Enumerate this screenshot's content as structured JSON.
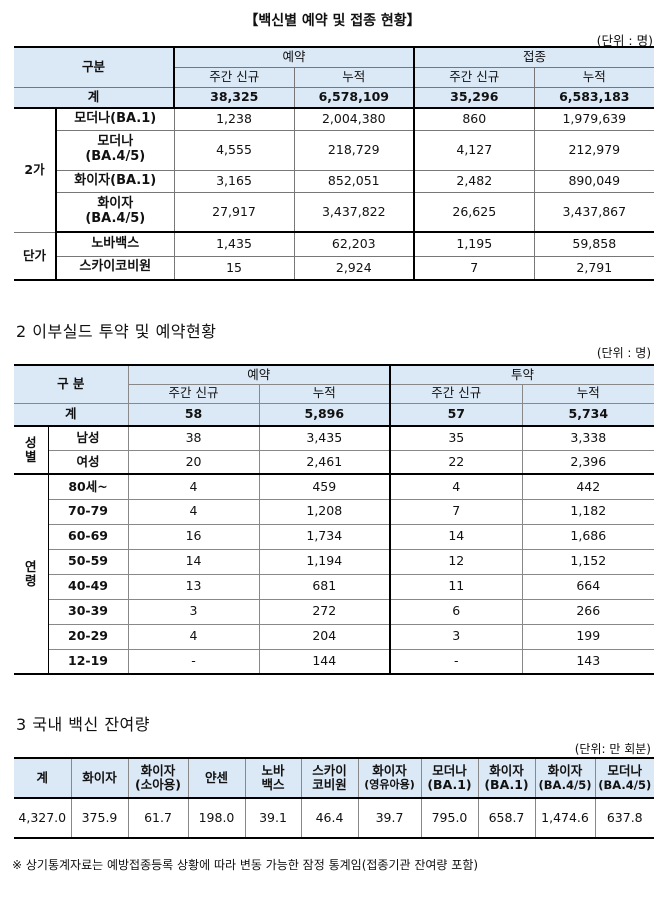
{
  "section1": {
    "title": "【백신별 예약 및 접종 현황】",
    "unit": "(단위 : 명)",
    "header": {
      "category": "구분",
      "reservation": "예약",
      "vaccination": "접종",
      "weekly_new": "주간 신규",
      "cumulative": "누적"
    },
    "total": {
      "label": "계",
      "res_week": "38,325",
      "res_cum": "6,578,109",
      "vac_week": "35,296",
      "vac_cum": "6,583,183"
    },
    "group_bivalent": "2가",
    "group_monovalent": "단가",
    "rows": [
      {
        "name": "모더나(BA.1)",
        "res_week": "1,238",
        "res_cum": "2,004,380",
        "vac_week": "860",
        "vac_cum": "1,979,639"
      },
      {
        "name": "모더나(BA.4/5)",
        "name_line1": "모더나",
        "name_line2": "(BA.4/5)",
        "res_week": "4,555",
        "res_cum": "218,729",
        "vac_week": "4,127",
        "vac_cum": "212,979"
      },
      {
        "name": "화이자(BA.1)",
        "res_week": "3,165",
        "res_cum": "852,051",
        "vac_week": "2,482",
        "vac_cum": "890,049"
      },
      {
        "name": "화이자(BA.4/5)",
        "name_line1": "화이자",
        "name_line2": "(BA.4/5)",
        "res_week": "27,917",
        "res_cum": "3,437,822",
        "vac_week": "26,625",
        "vac_cum": "3,437,867"
      },
      {
        "name": "노바백스",
        "res_week": "1,435",
        "res_cum": "62,203",
        "vac_week": "1,195",
        "vac_cum": "59,858"
      },
      {
        "name": "스카이코비원",
        "res_week": "15",
        "res_cum": "2,924",
        "vac_week": "7",
        "vac_cum": "2,791"
      }
    ]
  },
  "section2": {
    "title": "2 이부실드 투약 및 예약현황",
    "unit": "(단위 : 명)",
    "header": {
      "category": "구 분",
      "reservation": "예약",
      "administration": "투약",
      "weekly_new": "주간 신규",
      "cumulative": "누적"
    },
    "total": {
      "label": "계",
      "res_week": "58",
      "res_cum": "5,896",
      "adm_week": "57",
      "adm_cum": "5,734"
    },
    "gender_label_1": "성",
    "gender_label_2": "별",
    "age_label_1": "연",
    "age_label_2": "령",
    "gender_rows": [
      {
        "name": "남성",
        "res_week": "38",
        "res_cum": "3,435",
        "adm_week": "35",
        "adm_cum": "3,338"
      },
      {
        "name": "여성",
        "res_week": "20",
        "res_cum": "2,461",
        "adm_week": "22",
        "adm_cum": "2,396"
      }
    ],
    "age_rows": [
      {
        "name": "80세~",
        "res_week": "4",
        "res_cum": "459",
        "adm_week": "4",
        "adm_cum": "442"
      },
      {
        "name": "70-79",
        "res_week": "4",
        "res_cum": "1,208",
        "adm_week": "7",
        "adm_cum": "1,182"
      },
      {
        "name": "60-69",
        "res_week": "16",
        "res_cum": "1,734",
        "adm_week": "14",
        "adm_cum": "1,686"
      },
      {
        "name": "50-59",
        "res_week": "14",
        "res_cum": "1,194",
        "adm_week": "12",
        "adm_cum": "1,152"
      },
      {
        "name": "40-49",
        "res_week": "13",
        "res_cum": "681",
        "adm_week": "11",
        "adm_cum": "664"
      },
      {
        "name": "30-39",
        "res_week": "3",
        "res_cum": "272",
        "adm_week": "6",
        "adm_cum": "266"
      },
      {
        "name": "20-29",
        "res_week": "4",
        "res_cum": "204",
        "adm_week": "3",
        "adm_cum": "199"
      },
      {
        "name": "12-19",
        "res_week": "-",
        "res_cum": "144",
        "adm_week": "-",
        "adm_cum": "143"
      }
    ]
  },
  "section3": {
    "title": "3 국내 백신 잔여량",
    "unit": "(단위: 만 회분)",
    "headers": [
      {
        "l1": "계",
        "l2": ""
      },
      {
        "l1": "화이자",
        "l2": ""
      },
      {
        "l1": "화이자",
        "l2": "(소아용)"
      },
      {
        "l1": "얀센",
        "l2": ""
      },
      {
        "l1": "노바",
        "l2": "백스"
      },
      {
        "l1": "스카이",
        "l2": "코비원"
      },
      {
        "l1": "화이자",
        "l2": "(영유아용)"
      },
      {
        "l1": "모더나",
        "l2": "(BA.1)"
      },
      {
        "l1": "화이자",
        "l2": "(BA.1)"
      },
      {
        "l1": "화이자",
        "l2": "(BA.4/5)"
      },
      {
        "l1": "모더나",
        "l2": "(BA.4/5)"
      }
    ],
    "values": [
      "4,327.0",
      "375.9",
      "61.7",
      "198.0",
      "39.1",
      "46.4",
      "39.7",
      "795.0",
      "658.7",
      "1,474.6",
      "637.8"
    ]
  },
  "footnote": "※ 상기통계자료는 예방접종등록 상황에 따라 변동 가능한 잠정 통계임(접종기관 잔여량 포함)"
}
